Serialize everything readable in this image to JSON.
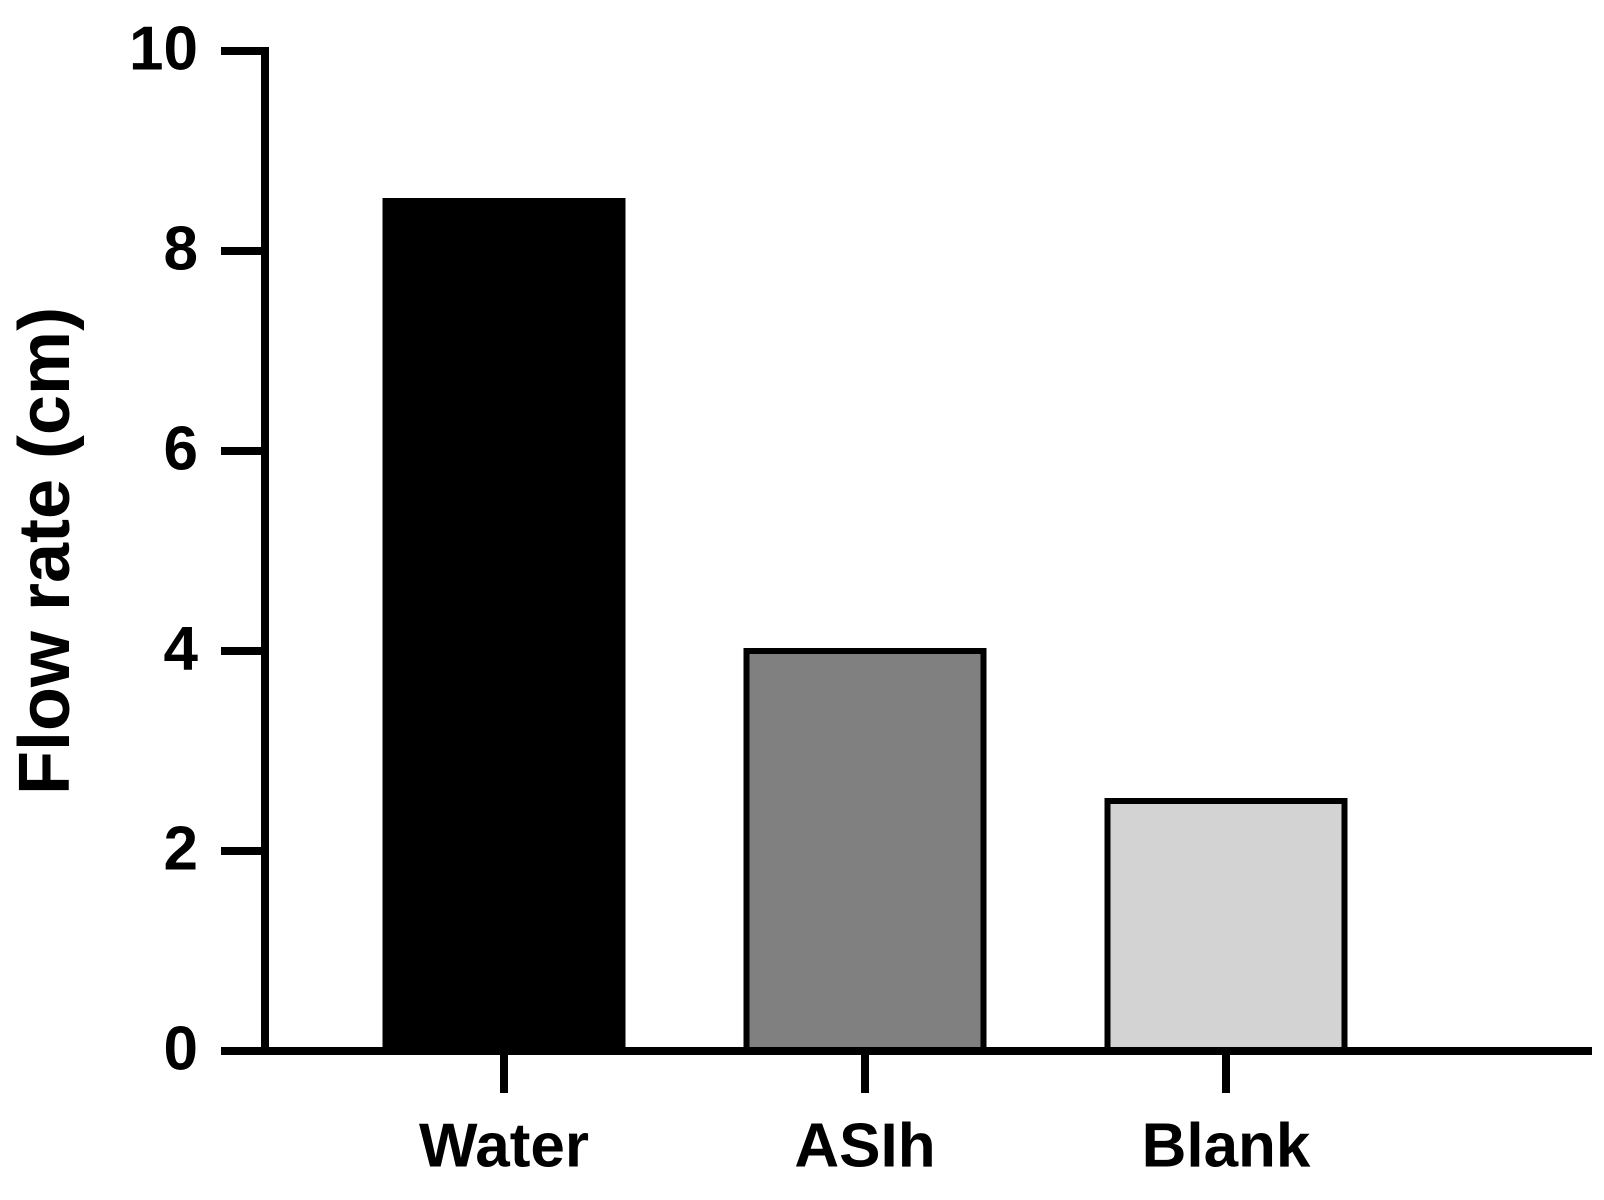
{
  "chart_data": {
    "type": "bar",
    "y_label": "Flow rate (cm)",
    "categories": [
      "Water",
      "ASIh",
      "Blank"
    ],
    "values": [
      8.5,
      4.0,
      2.5
    ],
    "colors": [
      "#000000",
      "#808080",
      "#d3d3d3"
    ],
    "ylim": [
      0,
      10
    ],
    "yticks": [
      0,
      2,
      4,
      6,
      8,
      10
    ],
    "grid": false
  }
}
